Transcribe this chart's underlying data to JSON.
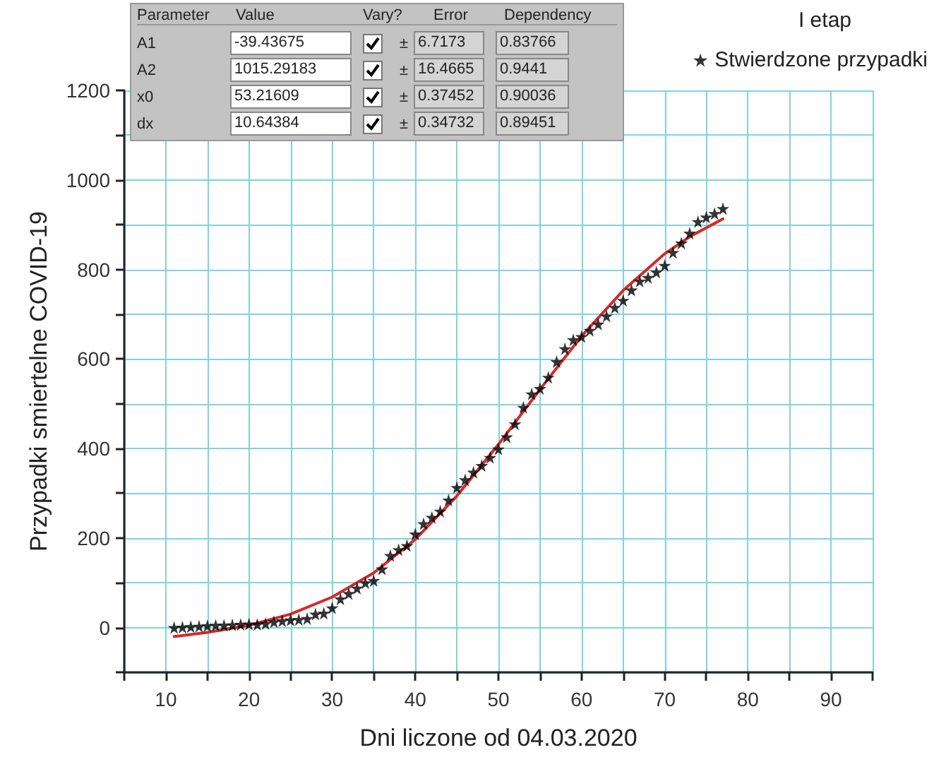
{
  "chart_data": {
    "type": "scatter",
    "xlabel": "Dni liczone od 04.03.2020",
    "ylabel": "Przypadki smiertelne COVID-19",
    "legend_title": "I etap",
    "legend": "top right",
    "grid": true,
    "xlim": [
      5,
      95
    ],
    "xticks": [
      10,
      20,
      30,
      40,
      50,
      60,
      70,
      80,
      90
    ],
    "ylim": [
      -100,
      1200
    ],
    "yticks": [
      0,
      200,
      400,
      600,
      800,
      1000,
      1200
    ],
    "annotations": [
      "Parameter",
      "Value",
      "Vary?",
      "Error",
      "Dependency",
      "A1",
      "-39.43675",
      "±",
      "6.7173",
      "0.83766",
      "A2",
      "1015.29183",
      "±",
      "16.4665",
      "0.9441",
      "x0",
      "53.21609",
      "±",
      "0.37452",
      "0.90036",
      "dx",
      "10.64384",
      "±",
      "0.34732",
      "0.89451"
    ],
    "series": [
      {
        "name": "Stwierdzone przypadki",
        "marker": "star",
        "color": "#000000",
        "x": [
          11,
          12,
          13,
          14,
          15,
          16,
          17,
          18,
          19,
          20,
          21,
          22,
          23,
          24,
          25,
          26,
          27,
          28,
          29,
          30,
          31,
          32,
          33,
          34,
          35,
          36,
          37,
          38,
          39,
          40,
          41,
          42,
          43,
          44,
          45,
          46,
          47,
          48,
          49,
          50,
          51,
          52,
          53,
          54,
          55,
          56,
          57,
          58,
          59,
          60,
          61,
          62,
          63,
          64,
          65,
          66,
          67,
          68,
          69,
          70,
          71,
          72,
          73,
          74,
          75,
          76,
          77
        ],
        "values": [
          0,
          1,
          2,
          3,
          4,
          5,
          5,
          6,
          7,
          8,
          7,
          9,
          13,
          15,
          17,
          18,
          20,
          30,
          32,
          44,
          64,
          76,
          88,
          100,
          105,
          131,
          161,
          174,
          183,
          209,
          232,
          246,
          260,
          285,
          313,
          330,
          347,
          362,
          380,
          399,
          426,
          455,
          492,
          522,
          534,
          559,
          594,
          623,
          643,
          650,
          664,
          678,
          696,
          715,
          731,
          754,
          774,
          782,
          794,
          809,
          838,
          859,
          881,
          907,
          917,
          925,
          936
        ]
      },
      {
        "type": "line",
        "marker": "none",
        "line_style": "solid",
        "color": "#d42a2a",
        "x": [
          11,
          15,
          20,
          25,
          30,
          35,
          40,
          45,
          50,
          55,
          60,
          65,
          70,
          73,
          77
        ],
        "values": [
          -20,
          -11,
          5,
          30,
          68,
          122,
          197,
          294,
          409,
          532,
          651,
          753,
          835,
          873,
          913
        ]
      }
    ]
  }
}
